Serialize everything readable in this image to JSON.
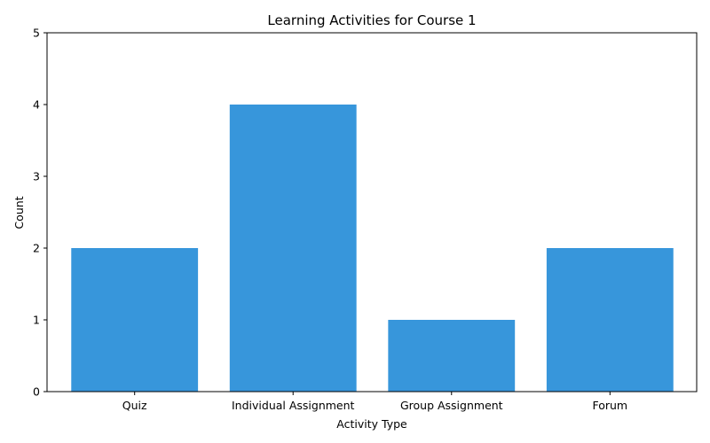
{
  "chart_data": {
    "type": "bar",
    "title": "Learning Activities for Course 1",
    "xlabel": "Activity Type",
    "ylabel": "Count",
    "categories": [
      "Quiz",
      "Individual Assignment",
      "Group Assignment",
      "Forum"
    ],
    "values": [
      2,
      4,
      1,
      2
    ],
    "ylim": [
      0,
      5
    ],
    "yticks": [
      0,
      1,
      2,
      3,
      4,
      5
    ],
    "grid": false,
    "bar_color": "#3796db"
  }
}
